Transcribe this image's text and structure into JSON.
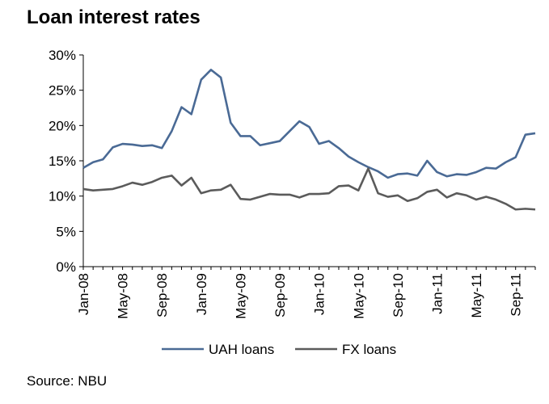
{
  "source": "Source: NBU",
  "chart_data": {
    "type": "line",
    "title": "Loan interest rates",
    "xlabel": "",
    "ylabel": "",
    "ylim": [
      0,
      30
    ],
    "yticks": [
      "0%",
      "5%",
      "10%",
      "15%",
      "20%",
      "25%",
      "30%"
    ],
    "ytick_values": [
      0,
      5,
      10,
      15,
      20,
      25,
      30
    ],
    "xtick_labels": [
      "Jan-08",
      "May-08",
      "Sep-08",
      "Jan-09",
      "May-09",
      "Sep-09",
      "Jan-10",
      "May-10",
      "Sep-10",
      "Jan-11",
      "May-11",
      "Sep-11"
    ],
    "x": [
      "Jan-08",
      "Feb-08",
      "Mar-08",
      "Apr-08",
      "May-08",
      "Jun-08",
      "Jul-08",
      "Aug-08",
      "Sep-08",
      "Oct-08",
      "Nov-08",
      "Dec-08",
      "Jan-09",
      "Feb-09",
      "Mar-09",
      "Apr-09",
      "May-09",
      "Jun-09",
      "Jul-09",
      "Aug-09",
      "Sep-09",
      "Oct-09",
      "Nov-09",
      "Dec-09",
      "Jan-10",
      "Feb-10",
      "Mar-10",
      "Apr-10",
      "May-10",
      "Jun-10",
      "Jul-10",
      "Aug-10",
      "Sep-10",
      "Oct-10",
      "Nov-10",
      "Dec-10",
      "Jan-11",
      "Feb-11",
      "Mar-11",
      "Apr-11",
      "May-11",
      "Jun-11",
      "Jul-11",
      "Aug-11",
      "Sep-11",
      "Oct-11",
      "Nov-11"
    ],
    "grid": false,
    "legend": "bottom",
    "series": [
      {
        "name": "UAH loans",
        "color": "#4a6a95",
        "values": [
          14.0,
          14.8,
          15.2,
          16.9,
          17.4,
          17.3,
          17.1,
          17.2,
          16.8,
          19.2,
          22.6,
          21.6,
          26.5,
          27.9,
          26.8,
          20.4,
          18.5,
          18.5,
          17.2,
          17.5,
          17.8,
          19.2,
          20.6,
          19.8,
          17.4,
          17.8,
          16.8,
          15.6,
          14.8,
          14.1,
          13.5,
          12.6,
          13.1,
          13.2,
          12.9,
          15.0,
          13.4,
          12.8,
          13.1,
          13.0,
          13.4,
          14.0,
          13.9,
          14.8,
          15.5,
          18.7,
          18.9
        ]
      },
      {
        "name": "FX loans",
        "color": "#5b5b5b",
        "values": [
          11.0,
          10.8,
          10.9,
          11.0,
          11.4,
          11.9,
          11.6,
          12.0,
          12.6,
          12.9,
          11.5,
          12.6,
          10.4,
          10.8,
          10.9,
          11.6,
          9.6,
          9.5,
          9.9,
          10.3,
          10.2,
          10.2,
          9.8,
          10.3,
          10.3,
          10.4,
          11.4,
          11.5,
          10.8,
          13.9,
          10.4,
          9.9,
          10.1,
          9.3,
          9.7,
          10.6,
          10.9,
          9.8,
          10.4,
          10.1,
          9.5,
          9.9,
          9.5,
          8.9,
          8.1,
          8.2,
          8.1
        ]
      }
    ]
  }
}
